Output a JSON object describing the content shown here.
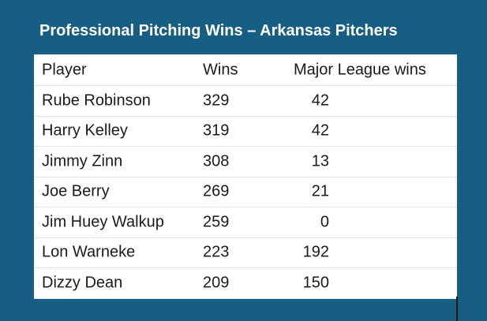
{
  "title": "Professional Pitching Wins – Arkansas Pitchers",
  "table": {
    "headers": {
      "player": "Player",
      "wins": "Wins",
      "mlw": "Major League wins"
    },
    "rows": [
      {
        "player": "Rube Robinson",
        "wins": "329",
        "mlw": "42"
      },
      {
        "player": "Harry Kelley",
        "wins": "319",
        "mlw": "42"
      },
      {
        "player": "Jimmy Zinn",
        "wins": "308",
        "mlw": "13"
      },
      {
        "player": "Joe Berry",
        "wins": "269",
        "mlw": "21"
      },
      {
        "player": "Jim Huey Walkup",
        "wins": "259",
        "mlw": "0"
      },
      {
        "player": "Lon Warneke",
        "wins": "223",
        "mlw": "192"
      },
      {
        "player": "Dizzy Dean",
        "wins": "209",
        "mlw": "150"
      }
    ]
  },
  "colors": {
    "background": "#175e85",
    "table_bg": "#ffffff",
    "text": "#1a1a1a"
  }
}
